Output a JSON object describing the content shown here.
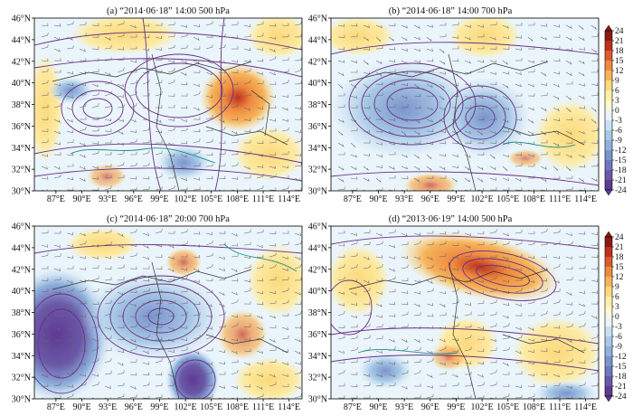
{
  "panels": [
    {
      "id": "a",
      "title": "(a) “2014·06·18” 14:00 500 hPa"
    },
    {
      "id": "b",
      "title": "(b) “2014·06·18” 14:00 700 hPa"
    },
    {
      "id": "c",
      "title": "(c) “2014·06·18” 20:00 700 hPa"
    },
    {
      "id": "d",
      "title": "(d) “2013·06·19” 14:00 500 hPa"
    }
  ],
  "axes": {
    "lat_labels": [
      "46°N",
      "44°N",
      "42°N",
      "40°N",
      "38°N",
      "36°N",
      "34°N",
      "32°N",
      "30°N"
    ],
    "lon_labels": [
      "87°E",
      "90°E",
      "93°E",
      "96°E",
      "99°E",
      "102°E",
      "105°E",
      "108°E",
      "111°E",
      "114°E"
    ]
  },
  "colorbar": {
    "ticks": [
      "24",
      "21",
      "18",
      "15",
      "12",
      "9",
      "6",
      "3",
      "0",
      "-3",
      "-6",
      "-9",
      "-12",
      "-15",
      "-18",
      "-21",
      "-24"
    ],
    "colors": [
      "#8b1a10",
      "#c0301c",
      "#dc5a30",
      "#ee8a40",
      "#f6b45a",
      "#fbd97c",
      "#fdf0a8",
      "#fff8d0",
      "#eaf4fb",
      "#c8e1f2",
      "#a8c9e6",
      "#8fb1dc",
      "#7b93cc",
      "#6e78bd",
      "#6a58a8",
      "#5f3a92"
    ]
  },
  "contours": [
    {
      "cx": 90.5,
      "cy": 37.0,
      "rx": 3.5,
      "ry": 2.5,
      "n": 9,
      "step": 1.4
    },
    {
      "cx": 96.5,
      "cy": 37.0,
      "rx": 6,
      "ry": 4,
      "n": 12,
      "step": 1.0
    },
    {
      "cx": 101,
      "cy": 38.0,
      "rx": 7,
      "ry": 4.5,
      "n": 10,
      "step": 1.0
    },
    {
      "cx": 96,
      "cy": 40.0,
      "rx": 2,
      "ry": 1.6,
      "n": 10,
      "step": 1.0
    },
    {
      "cx": 103,
      "cy": 42.0,
      "rx": 3.5,
      "ry": 1.5,
      "n": 9,
      "step": 1.0
    }
  ]
}
